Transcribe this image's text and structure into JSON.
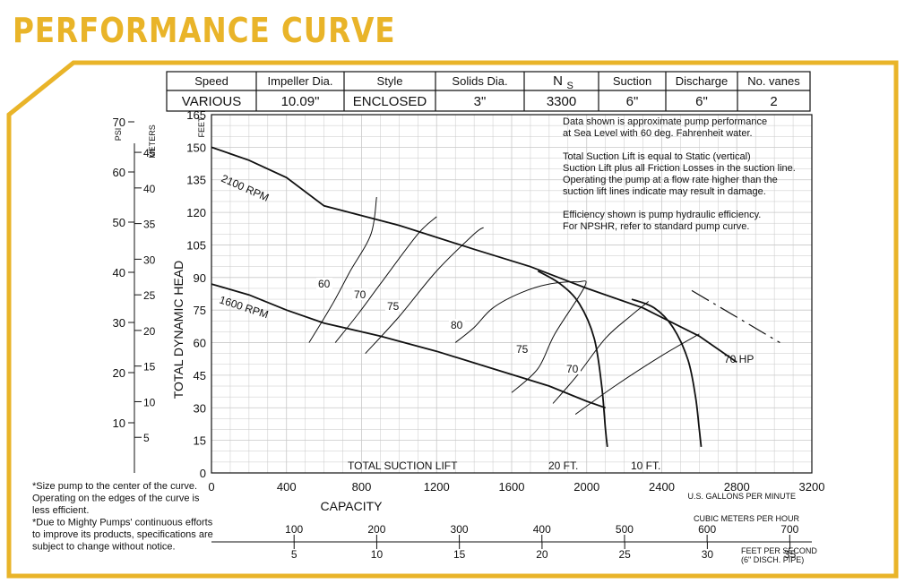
{
  "header": {
    "title": "PERFORMANCE CURVE"
  },
  "colors": {
    "accent": "#e9b429",
    "grid": "#c8c8c8",
    "ink": "#111111"
  },
  "spec_table": {
    "headers": [
      "Speed",
      "Impeller Dia.",
      "Style",
      "Solids Dia.",
      "N",
      "Suction",
      "Discharge",
      "No. vanes"
    ],
    "ns_subscript": "S",
    "values": [
      "VARIOUS",
      "10.09\"",
      "ENCLOSED",
      "3\"",
      "3300",
      "6\"",
      "6\"",
      "2"
    ]
  },
  "notes": [
    "Data shown is approximate pump performance",
    "at Sea Level with 60 deg. Fahrenheit water.",
    "",
    "Total Suction Lift is equal to Static (vertical)",
    "Suction Lift plus all Friction Losses in the suction line.",
    "Operating the pump at a flow rate higher than the",
    "suction lift lines indicate may result in damage.",
    "",
    "Efficiency shown is pump hydraulic efficiency.",
    "For NPSHR, refer to standard pump curve."
  ],
  "footnotes": [
    "*Size pump to the center of the curve.",
    "Operating on the edges of the curve is",
    "less efficient.",
    "*Due to Mighty Pumps' continuous efforts",
    "to improve its products, specifications are",
    "subject to change without notice."
  ],
  "chart_data": {
    "type": "line",
    "xlabel": "CAPACITY",
    "x_units_label": "U.S. GALLONS PER MINUTE",
    "ylabel": "TOTAL DYNAMIC HEAD",
    "y_units_label": "FEET",
    "xlim": [
      0,
      3200
    ],
    "ylim": [
      0,
      165
    ],
    "x_ticks": [
      0,
      400,
      800,
      1200,
      1600,
      2000,
      2400,
      2800,
      3200
    ],
    "y_ticks": [
      0,
      15,
      30,
      45,
      60,
      75,
      90,
      105,
      120,
      135,
      150,
      165
    ],
    "grid": true,
    "secondary_axes": {
      "psi": {
        "label": "PSI",
        "ticks": [
          10,
          20,
          30,
          40,
          50,
          60,
          70
        ]
      },
      "meters": {
        "label": "METERS",
        "ticks": [
          5,
          10,
          15,
          20,
          25,
          30,
          35,
          40,
          45
        ]
      },
      "cubic_meters_per_hour": {
        "label": "CUBIC METERS PER HOUR",
        "ticks": [
          100,
          200,
          300,
          400,
          500,
          600,
          700
        ]
      },
      "feet_per_second": {
        "label": "FEET PER SECOND",
        "sublabel": "(6\" DISCH. PIPE)",
        "ticks": [
          5,
          10,
          15,
          20,
          25,
          30,
          35
        ]
      }
    },
    "series": [
      {
        "name": "2100 RPM",
        "kind": "head",
        "points": [
          [
            0,
            150
          ],
          [
            200,
            144
          ],
          [
            400,
            136
          ],
          [
            600,
            123
          ],
          [
            1000,
            114
          ],
          [
            1400,
            103
          ],
          [
            1700,
            95
          ],
          [
            2000,
            85
          ],
          [
            2300,
            76
          ],
          [
            2600,
            63
          ],
          [
            2800,
            51
          ]
        ]
      },
      {
        "name": "1600 RPM",
        "kind": "head",
        "points": [
          [
            0,
            87
          ],
          [
            200,
            82
          ],
          [
            400,
            75
          ],
          [
            600,
            69
          ],
          [
            900,
            63
          ],
          [
            1200,
            56
          ],
          [
            1500,
            48
          ],
          [
            1800,
            40
          ],
          [
            2000,
            33
          ],
          [
            2100,
            30
          ]
        ]
      },
      {
        "name": "20 FT.",
        "kind": "suction_lift",
        "points": [
          [
            1740,
            93
          ],
          [
            1860,
            87
          ],
          [
            1960,
            78
          ],
          [
            2040,
            62
          ],
          [
            2080,
            40
          ],
          [
            2100,
            20
          ],
          [
            2110,
            12
          ]
        ]
      },
      {
        "name": "10 FT.",
        "kind": "suction_lift",
        "points": [
          [
            2240,
            80
          ],
          [
            2360,
            76
          ],
          [
            2460,
            67
          ],
          [
            2540,
            52
          ],
          [
            2580,
            35
          ],
          [
            2600,
            20
          ],
          [
            2610,
            12
          ]
        ]
      },
      {
        "name": "70 HP",
        "kind": "power",
        "points": [
          [
            2560,
            84
          ],
          [
            3030,
            60
          ]
        ]
      }
    ],
    "efficiency_lines": [
      {
        "name": "60",
        "points": [
          [
            520,
            60
          ],
          [
            640,
            77
          ],
          [
            740,
            93
          ],
          [
            850,
            110
          ],
          [
            880,
            127
          ]
        ]
      },
      {
        "name": "70",
        "points": [
          [
            660,
            60
          ],
          [
            780,
            73
          ],
          [
            900,
            87
          ],
          [
            1100,
            110
          ],
          [
            1200,
            118
          ]
        ]
      },
      {
        "name": "75",
        "points": [
          [
            820,
            55
          ],
          [
            1000,
            72
          ],
          [
            1200,
            93
          ],
          [
            1400,
            110
          ],
          [
            1450,
            113
          ]
        ]
      },
      {
        "name": "80",
        "points": [
          [
            1600,
            37
          ],
          [
            1740,
            48
          ],
          [
            1830,
            64
          ],
          [
            1990,
            86
          ],
          [
            1950,
            88
          ],
          [
            1800,
            87
          ],
          [
            1650,
            83
          ],
          [
            1500,
            76
          ],
          [
            1400,
            67
          ],
          [
            1300,
            60
          ]
        ]
      },
      {
        "name": "75",
        "points": [
          [
            1820,
            32
          ],
          [
            1950,
            45
          ],
          [
            2100,
            62
          ],
          [
            2230,
            72
          ],
          [
            2330,
            79
          ]
        ]
      },
      {
        "name": "70",
        "points": [
          [
            1940,
            27
          ],
          [
            2150,
            40
          ],
          [
            2400,
            54
          ],
          [
            2600,
            64
          ]
        ]
      }
    ],
    "annotations": [
      {
        "text": "TOTAL SUCTION LIFT",
        "x": 1210,
        "y": 2
      }
    ]
  }
}
